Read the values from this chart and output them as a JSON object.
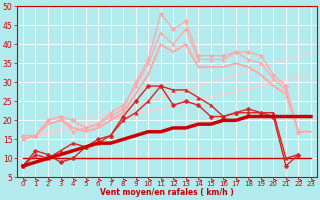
{
  "background_color": "#b2ebee",
  "grid_color": "#c8e8e8",
  "xlabel": "Vent moyen/en rafales ( km/h )",
  "xlim": [
    -0.5,
    23.5
  ],
  "ylim": [
    5,
    50
  ],
  "yticks": [
    5,
    10,
    15,
    20,
    25,
    30,
    35,
    40,
    45,
    50
  ],
  "xticks": [
    0,
    1,
    2,
    3,
    4,
    5,
    6,
    7,
    8,
    9,
    10,
    11,
    12,
    13,
    14,
    15,
    16,
    17,
    18,
    19,
    20,
    21,
    22,
    23
  ],
  "series": [
    {
      "x": [
        0,
        1,
        2,
        3,
        4,
        5,
        6,
        7,
        8,
        9,
        10,
        11,
        12,
        13,
        14,
        15,
        16,
        17,
        18,
        19,
        20,
        21,
        22
      ],
      "y": [
        8,
        12,
        11,
        9,
        10,
        13,
        15,
        16,
        21,
        25,
        29,
        29,
        24,
        25,
        24,
        21,
        21,
        22,
        23,
        22,
        21,
        8,
        11
      ],
      "color": "#dd2222",
      "marker": "D",
      "markersize": 2.5,
      "linewidth": 1.0,
      "zorder": 4
    },
    {
      "x": [
        0,
        1,
        2,
        3,
        4,
        5,
        6,
        7,
        8,
        9,
        10,
        11,
        12,
        13,
        14,
        15,
        16,
        17,
        18,
        19,
        20,
        21,
        22
      ],
      "y": [
        8,
        11,
        10,
        12,
        14,
        13,
        14,
        16,
        20,
        22,
        25,
        29,
        28,
        28,
        26,
        24,
        21,
        22,
        22,
        22,
        22,
        10,
        11
      ],
      "color": "#dd2222",
      "marker": "^",
      "markersize": 2.5,
      "linewidth": 1.0,
      "zorder": 3
    },
    {
      "x": [
        0,
        1,
        2,
        3,
        4,
        5,
        6,
        7,
        8,
        9,
        10,
        11,
        12,
        13,
        14,
        15,
        16,
        17,
        18,
        19,
        20,
        21,
        22,
        23
      ],
      "y": [
        8,
        9,
        10,
        11,
        12,
        13,
        14,
        14,
        15,
        16,
        17,
        17,
        18,
        18,
        19,
        19,
        20,
        20,
        21,
        21,
        21,
        21,
        21,
        21
      ],
      "color": "#cc0000",
      "marker": null,
      "markersize": 0,
      "linewidth": 2.5,
      "zorder": 5
    },
    {
      "x": [
        0,
        1,
        2,
        3,
        4,
        5,
        6,
        7,
        8,
        9,
        10,
        11,
        12,
        13,
        14,
        15,
        16,
        17,
        18,
        19,
        20,
        21,
        22,
        23
      ],
      "y": [
        10,
        10,
        10,
        10,
        10,
        10,
        10,
        10,
        10,
        10,
        10,
        10,
        10,
        10,
        10,
        10,
        10,
        10,
        10,
        10,
        10,
        10,
        10,
        10
      ],
      "color": "#cc0000",
      "marker": null,
      "markersize": 0,
      "linewidth": 1.0,
      "linestyle": "solid",
      "zorder": 2
    },
    {
      "x": [
        0,
        1,
        2,
        3,
        4,
        5,
        6,
        7,
        8,
        9,
        10,
        11,
        12,
        13,
        14,
        15,
        16,
        17,
        18,
        19,
        20,
        21,
        22
      ],
      "y": [
        16,
        16,
        20,
        21,
        20,
        18,
        19,
        21,
        23,
        30,
        36,
        48,
        44,
        46,
        37,
        37,
        37,
        38,
        38,
        37,
        32,
        29,
        17
      ],
      "color": "#ffaaaa",
      "marker": "D",
      "markersize": 2.5,
      "linewidth": 1.0,
      "zorder": 3
    },
    {
      "x": [
        0,
        1,
        2,
        3,
        4,
        5,
        6,
        7,
        8,
        9,
        10,
        11,
        12,
        13,
        14,
        15,
        16,
        17,
        18,
        19,
        20,
        21,
        22
      ],
      "y": [
        15,
        16,
        20,
        21,
        17,
        18,
        19,
        22,
        24,
        29,
        35,
        43,
        40,
        44,
        36,
        36,
        36,
        38,
        36,
        35,
        31,
        28,
        17
      ],
      "color": "#ffaaaa",
      "marker": "^",
      "markersize": 2.5,
      "linewidth": 1.0,
      "zorder": 3
    },
    {
      "x": [
        0,
        1,
        2,
        3,
        4,
        5,
        6,
        7,
        8,
        9,
        10,
        11,
        12,
        13,
        14,
        15,
        16,
        17,
        18,
        19,
        20,
        21,
        22,
        23
      ],
      "y": [
        15,
        16,
        19,
        20,
        18,
        17,
        18,
        20,
        22,
        27,
        32,
        40,
        38,
        40,
        34,
        34,
        34,
        35,
        34,
        32,
        29,
        27,
        17,
        17
      ],
      "color": "#ffaaaa",
      "marker": null,
      "markersize": 0,
      "linewidth": 1.5,
      "zorder": 2
    },
    {
      "x": [
        0,
        23
      ],
      "y": [
        15,
        38
      ],
      "color": "#ffcccc",
      "marker": null,
      "markersize": 0,
      "linewidth": 1.0,
      "zorder": 1
    },
    {
      "x": [
        0,
        23
      ],
      "y": [
        15,
        32
      ],
      "color": "#ffcccc",
      "marker": null,
      "markersize": 0,
      "linewidth": 1.0,
      "zorder": 1
    }
  ],
  "arrow_color": "#cc0000"
}
